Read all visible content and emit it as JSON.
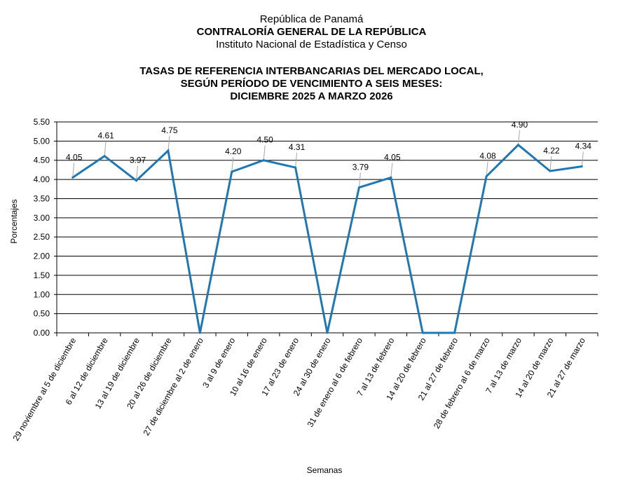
{
  "header": {
    "line1": "República de Panamá",
    "line2": "CONTRALORÍA GENERAL DE LA REPÚBLICA",
    "line3": "Instituto  Nacional de Estadística y Censo"
  },
  "chart_data": {
    "type": "line",
    "title": [
      "TASAS DE REFERENCIA INTERBANCARIAS DEL MERCADO LOCAL,",
      "SEGÚN PERÍODO DE VENCIMIENTO A SEIS MESES:",
      "DICIEMBRE 2025 A MARZO 2026"
    ],
    "xlabel": "Semanas",
    "ylabel": "Porcentajes",
    "ylim": [
      0,
      5.5
    ],
    "yticks": [
      "0.00",
      "0.50",
      "1.00",
      "1.50",
      "2.00",
      "2.50",
      "3.00",
      "3.50",
      "4.00",
      "4.50",
      "5.00",
      "5.50"
    ],
    "grid": true,
    "color": "#1f77b4",
    "categories": [
      "29 noviembre al 5 de diciembre",
      "6 al 12 de diciembre",
      "13 al 19 de diciembre",
      "20 al 26 de diciembre",
      "27 de diciembre al 2 de enero",
      "3 al 9 de enero",
      "10 al 16 de enero",
      "17 al 23 de enero",
      "24 al 30 de enero",
      "31 de enero al 6 de febrero",
      "7 al 13 de febrero",
      "14 al 20 de febrero",
      "21 al 27 de febrero",
      "28 de febrero al 6 de marzo",
      "7 al 13 de marzo",
      "14 al 20 de marzo",
      "21 al 27 de marzo"
    ],
    "values": [
      4.05,
      4.61,
      3.97,
      4.75,
      0,
      4.2,
      4.5,
      4.31,
      0,
      3.79,
      4.05,
      0,
      0,
      4.08,
      4.9,
      4.22,
      4.34
    ],
    "data_labels": [
      "4.05",
      "4.61",
      "3.97",
      "4.75",
      "",
      "4.20",
      "4.50",
      "4.31",
      "",
      "3.79",
      "4.05",
      "",
      "",
      "4.08",
      "4.90",
      "4.22",
      "4.34"
    ]
  }
}
